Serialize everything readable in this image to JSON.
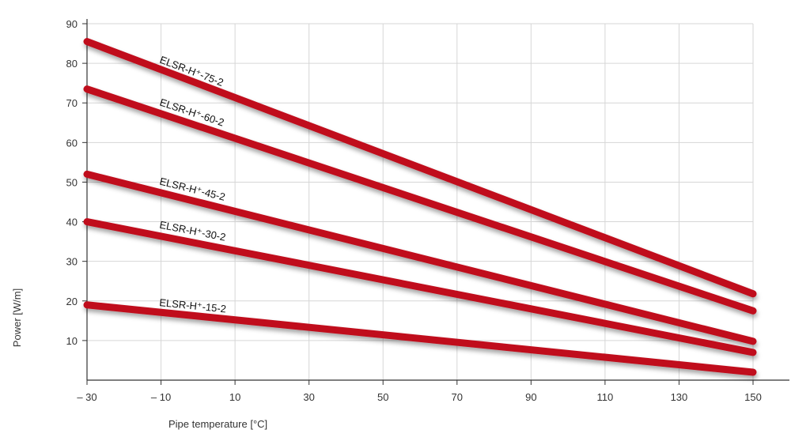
{
  "chart_data": {
    "type": "line",
    "xlabel": "Pipe temperature [°C]",
    "ylabel": "Power [W/m]",
    "xlim": [
      -30,
      150
    ],
    "ylim": [
      0,
      90
    ],
    "x_ticks": [
      "– 30",
      "– 10",
      "10",
      "30",
      "50",
      "70",
      "90",
      "110",
      "130",
      "150"
    ],
    "x_tick_values": [
      -30,
      -10,
      10,
      30,
      50,
      70,
      90,
      110,
      130,
      150
    ],
    "y_ticks": [
      "10",
      "20",
      "30",
      "40",
      "50",
      "60",
      "70",
      "80",
      "90"
    ],
    "y_tick_values": [
      10,
      20,
      30,
      40,
      50,
      60,
      70,
      80,
      90
    ],
    "grid": true,
    "series_color": "#c0111f",
    "series": [
      {
        "name": "ELSR-H⁺-75-2",
        "x": [
          -30,
          150
        ],
        "y": [
          85.5,
          21.8
        ]
      },
      {
        "name": "ELSR-H⁺-60-2",
        "x": [
          -30,
          150
        ],
        "y": [
          73.5,
          17.5
        ]
      },
      {
        "name": "ELSR-H⁺-45-2",
        "x": [
          -30,
          150
        ],
        "y": [
          52.0,
          9.8
        ]
      },
      {
        "name": "ELSR-H⁺-30-2",
        "x": [
          -30,
          150
        ],
        "y": [
          40.0,
          7.0
        ]
      },
      {
        "name": "ELSR-H⁺-15-2",
        "x": [
          -30,
          150
        ],
        "y": [
          19.0,
          2.0
        ]
      }
    ]
  }
}
